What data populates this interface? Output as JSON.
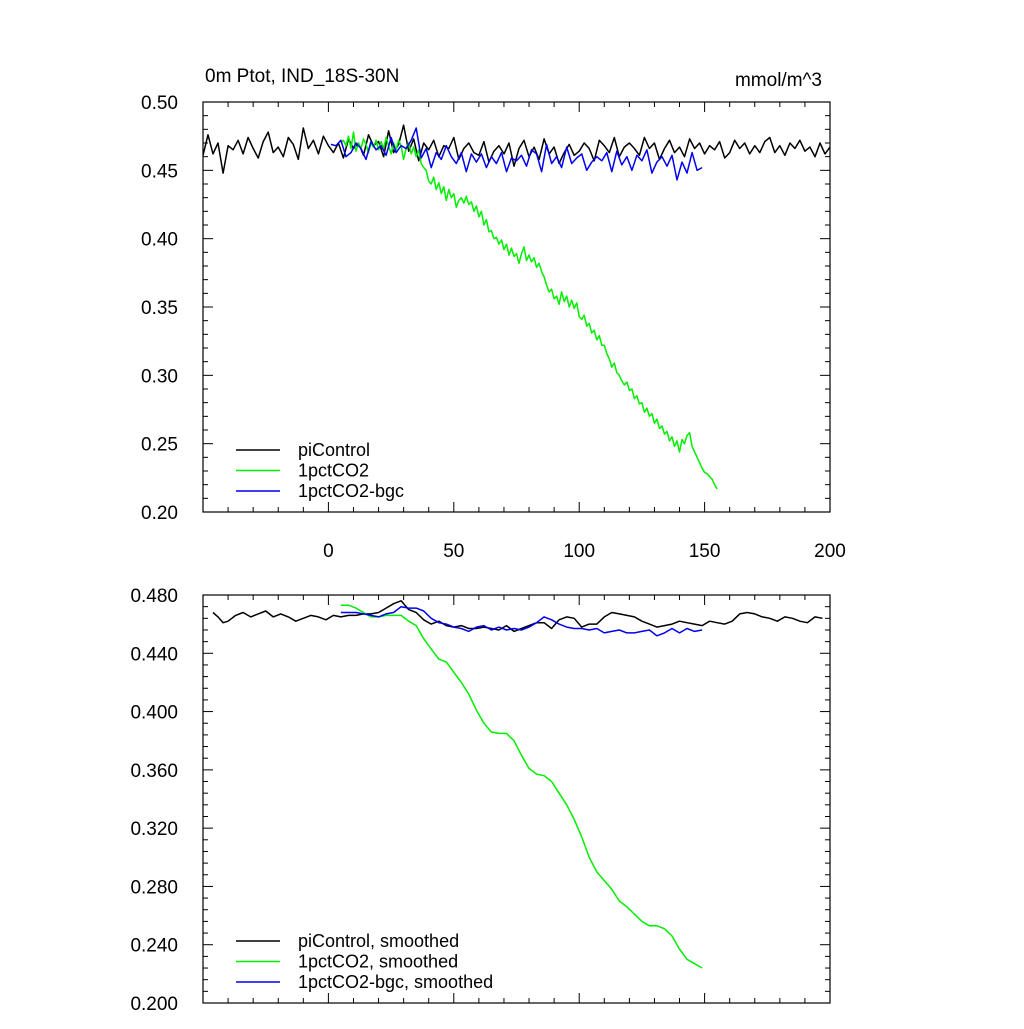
{
  "colors": {
    "piControl": "#000000",
    "1pctCO2": "#00ee00",
    "1pctCO2-bgc": "#0000ee"
  },
  "chart_data": [
    {
      "type": "line",
      "title": "0m Ptot, IND_18S-30N",
      "units": "mmol/m^3",
      "xlim": [
        -50,
        200
      ],
      "ylim": [
        0.2,
        0.5
      ],
      "yticks": [
        0.2,
        0.25,
        0.3,
        0.35,
        0.4,
        0.45,
        0.5
      ],
      "ytick_labels": [
        "0.20",
        "0.25",
        "0.30",
        "0.35",
        "0.40",
        "0.45",
        "0.50"
      ],
      "xticks": [
        0,
        50,
        100,
        150,
        200
      ],
      "xtick_labels": [
        "0",
        "50",
        "100",
        "150",
        "200"
      ],
      "legend_position": "bottom-left",
      "grid": false,
      "series": [
        {
          "name": "piControl",
          "color": "#000000",
          "x_start": -50,
          "x_step": 2,
          "values": [
            0.461,
            0.476,
            0.462,
            0.47,
            0.448,
            0.468,
            0.465,
            0.472,
            0.462,
            0.474,
            0.466,
            0.459,
            0.471,
            0.478,
            0.463,
            0.467,
            0.46,
            0.474,
            0.469,
            0.458,
            0.481,
            0.466,
            0.472,
            0.462,
            0.475,
            0.468,
            0.463,
            0.47,
            0.459,
            0.473,
            0.466,
            0.47,
            0.461,
            0.476,
            0.468,
            0.471,
            0.46,
            0.479,
            0.463,
            0.469,
            0.483,
            0.464,
            0.473,
            0.457,
            0.47,
            0.465,
            0.472,
            0.46,
            0.468,
            0.466,
            0.474,
            0.458,
            0.466,
            0.47,
            0.463,
            0.461,
            0.471,
            0.456,
            0.464,
            0.468,
            0.462,
            0.47,
            0.453,
            0.466,
            0.472,
            0.46,
            0.467,
            0.458,
            0.473,
            0.462,
            0.467,
            0.455,
            0.463,
            0.469,
            0.461,
            0.464,
            0.47,
            0.466,
            0.457,
            0.472,
            0.468,
            0.463,
            0.474,
            0.46,
            0.467,
            0.47,
            0.466,
            0.461,
            0.474,
            0.466,
            0.47,
            0.458,
            0.466,
            0.472,
            0.463,
            0.467,
            0.46,
            0.473,
            0.466,
            0.47,
            0.462,
            0.468,
            0.465,
            0.471,
            0.459,
            0.463,
            0.472,
            0.466,
            0.47,
            0.462,
            0.468,
            0.463,
            0.471,
            0.474,
            0.463,
            0.468,
            0.461,
            0.47,
            0.466,
            0.472,
            0.464,
            0.467,
            0.46,
            0.47,
            0.462,
            0.467
          ]
        },
        {
          "name": "1pctCO2",
          "color": "#00ee00",
          "x_start": 5,
          "x_step": 1,
          "values": [
            0.47,
            0.472,
            0.468,
            0.475,
            0.466,
            0.478,
            0.464,
            0.47,
            0.466,
            0.473,
            0.469,
            0.463,
            0.47,
            0.467,
            0.472,
            0.465,
            0.471,
            0.466,
            0.474,
            0.468,
            0.462,
            0.47,
            0.465,
            0.472,
            0.468,
            0.458,
            0.466,
            0.47,
            0.462,
            0.467,
            0.46,
            0.465,
            0.455,
            0.452,
            0.45,
            0.442,
            0.44,
            0.445,
            0.436,
            0.441,
            0.433,
            0.438,
            0.428,
            0.436,
            0.43,
            0.433,
            0.423,
            0.428,
            0.43,
            0.426,
            0.431,
            0.425,
            0.427,
            0.42,
            0.424,
            0.416,
            0.42,
            0.41,
            0.414,
            0.405,
            0.406,
            0.4,
            0.401,
            0.396,
            0.399,
            0.392,
            0.396,
            0.388,
            0.393,
            0.387,
            0.389,
            0.382,
            0.389,
            0.394,
            0.384,
            0.388,
            0.383,
            0.386,
            0.379,
            0.382,
            0.376,
            0.372,
            0.366,
            0.361,
            0.363,
            0.356,
            0.358,
            0.352,
            0.361,
            0.354,
            0.358,
            0.35,
            0.355,
            0.349,
            0.353,
            0.343,
            0.341,
            0.344,
            0.336,
            0.338,
            0.331,
            0.333,
            0.326,
            0.329,
            0.322,
            0.322,
            0.316,
            0.312,
            0.306,
            0.309,
            0.302,
            0.3,
            0.296,
            0.293,
            0.295,
            0.289,
            0.29,
            0.283,
            0.285,
            0.279,
            0.28,
            0.273,
            0.276,
            0.27,
            0.272,
            0.265,
            0.268,
            0.261,
            0.263,
            0.257,
            0.259,
            0.252,
            0.255,
            0.248,
            0.252,
            0.244,
            0.253,
            0.25,
            0.256,
            0.258,
            0.248,
            0.244,
            0.24,
            0.236,
            0.232,
            0.229,
            0.228,
            0.226,
            0.224,
            0.22,
            0.217
          ]
        },
        {
          "name": "1pctCO2-bgc",
          "color": "#0000ee",
          "x_start": 1,
          "x_step": 2,
          "values": [
            0.469,
            0.468,
            0.472,
            0.46,
            0.463,
            0.47,
            0.466,
            0.458,
            0.471,
            0.465,
            0.468,
            0.461,
            0.474,
            0.463,
            0.468,
            0.466,
            0.472,
            0.481,
            0.459,
            0.466,
            0.452,
            0.463,
            0.458,
            0.468,
            0.46,
            0.455,
            0.463,
            0.449,
            0.462,
            0.456,
            0.462,
            0.452,
            0.46,
            0.455,
            0.463,
            0.449,
            0.459,
            0.457,
            0.461,
            0.453,
            0.465,
            0.462,
            0.449,
            0.469,
            0.455,
            0.46,
            0.452,
            0.467,
            0.455,
            0.459,
            0.462,
            0.45,
            0.456,
            0.46,
            0.457,
            0.463,
            0.449,
            0.464,
            0.454,
            0.46,
            0.45,
            0.461,
            0.457,
            0.465,
            0.448,
            0.456,
            0.46,
            0.453,
            0.461,
            0.443,
            0.456,
            0.448,
            0.463,
            0.45,
            0.452
          ]
        }
      ]
    },
    {
      "type": "line",
      "title": "",
      "xlim": [
        -50,
        200
      ],
      "ylim": [
        0.2,
        0.48
      ],
      "yticks": [
        0.2,
        0.24,
        0.28,
        0.32,
        0.36,
        0.4,
        0.44,
        0.48
      ],
      "ytick_labels": [
        "0.200",
        "0.240",
        "0.280",
        "0.320",
        "0.360",
        "0.400",
        "0.440",
        "0.480"
      ],
      "xticks": [
        0,
        50,
        100,
        150,
        200
      ],
      "legend_position": "bottom-left",
      "grid": false,
      "series": [
        {
          "name": "piControl, smoothed",
          "color": "#000000",
          "x": [
            -46,
            -44,
            -42,
            -40,
            -37,
            -34,
            -31,
            -28,
            -25,
            -22,
            -19,
            -16,
            -13,
            -10,
            -7,
            -4,
            -1,
            2,
            5,
            8,
            11,
            14,
            17,
            20,
            23,
            26,
            29,
            32,
            35,
            38,
            41,
            44,
            47,
            50,
            53,
            56,
            59,
            62,
            65,
            68,
            71,
            74,
            77,
            80,
            83,
            86,
            89,
            92,
            95,
            98,
            101,
            104,
            107,
            110,
            113,
            116,
            119,
            122,
            125,
            128,
            131,
            134,
            137,
            140,
            143,
            146,
            149,
            152,
            155,
            158,
            161,
            164,
            167,
            170,
            173,
            176,
            179,
            182,
            185,
            188,
            191,
            194,
            197
          ],
          "values": [
            0.468,
            0.465,
            0.461,
            0.462,
            0.466,
            0.468,
            0.465,
            0.467,
            0.469,
            0.465,
            0.467,
            0.465,
            0.462,
            0.464,
            0.466,
            0.465,
            0.463,
            0.466,
            0.465,
            0.466,
            0.466,
            0.467,
            0.467,
            0.468,
            0.471,
            0.474,
            0.476,
            0.47,
            0.468,
            0.463,
            0.46,
            0.462,
            0.459,
            0.458,
            0.459,
            0.457,
            0.457,
            0.458,
            0.457,
            0.456,
            0.459,
            0.455,
            0.457,
            0.459,
            0.461,
            0.461,
            0.457,
            0.463,
            0.465,
            0.464,
            0.458,
            0.46,
            0.46,
            0.465,
            0.468,
            0.467,
            0.466,
            0.465,
            0.462,
            0.46,
            0.458,
            0.459,
            0.46,
            0.462,
            0.461,
            0.46,
            0.459,
            0.462,
            0.461,
            0.46,
            0.462,
            0.467,
            0.468,
            0.467,
            0.465,
            0.464,
            0.462,
            0.465,
            0.464,
            0.462,
            0.461,
            0.465,
            0.464
          ]
        },
        {
          "name": "1pctCO2, smoothed",
          "color": "#00ee00",
          "x": [
            5,
            8,
            11,
            14,
            17,
            20,
            23,
            26,
            29,
            32,
            35,
            38,
            41,
            44,
            47,
            50,
            53,
            56,
            59,
            62,
            65,
            68,
            71,
            74,
            77,
            80,
            83,
            86,
            89,
            92,
            95,
            98,
            101,
            104,
            107,
            110,
            113,
            116,
            119,
            122,
            125,
            128,
            131,
            134,
            137,
            140,
            143,
            146,
            149
          ],
          "values": [
            0.473,
            0.473,
            0.471,
            0.468,
            0.465,
            0.465,
            0.466,
            0.466,
            0.466,
            0.462,
            0.459,
            0.45,
            0.443,
            0.436,
            0.434,
            0.427,
            0.42,
            0.412,
            0.401,
            0.392,
            0.386,
            0.385,
            0.385,
            0.38,
            0.37,
            0.361,
            0.357,
            0.356,
            0.352,
            0.344,
            0.336,
            0.326,
            0.314,
            0.3,
            0.29,
            0.284,
            0.278,
            0.27,
            0.266,
            0.261,
            0.256,
            0.253,
            0.253,
            0.251,
            0.246,
            0.237,
            0.23,
            0.227,
            0.224
          ]
        },
        {
          "name": "1pctCO2-bgc, smoothed",
          "color": "#0000ee",
          "x": [
            5,
            8,
            11,
            14,
            17,
            20,
            23,
            26,
            29,
            32,
            35,
            38,
            41,
            44,
            47,
            50,
            53,
            56,
            59,
            62,
            65,
            68,
            71,
            74,
            77,
            80,
            83,
            86,
            89,
            92,
            95,
            98,
            101,
            104,
            107,
            110,
            113,
            116,
            119,
            122,
            125,
            128,
            131,
            134,
            137,
            140,
            143,
            146,
            149
          ],
          "values": [
            0.468,
            0.468,
            0.468,
            0.467,
            0.466,
            0.465,
            0.467,
            0.468,
            0.472,
            0.471,
            0.471,
            0.469,
            0.464,
            0.461,
            0.46,
            0.458,
            0.457,
            0.455,
            0.458,
            0.459,
            0.456,
            0.458,
            0.456,
            0.457,
            0.456,
            0.458,
            0.461,
            0.465,
            0.463,
            0.46,
            0.458,
            0.457,
            0.457,
            0.456,
            0.457,
            0.454,
            0.455,
            0.456,
            0.454,
            0.454,
            0.455,
            0.456,
            0.452,
            0.454,
            0.457,
            0.454,
            0.457,
            0.455,
            0.456
          ]
        }
      ]
    }
  ]
}
